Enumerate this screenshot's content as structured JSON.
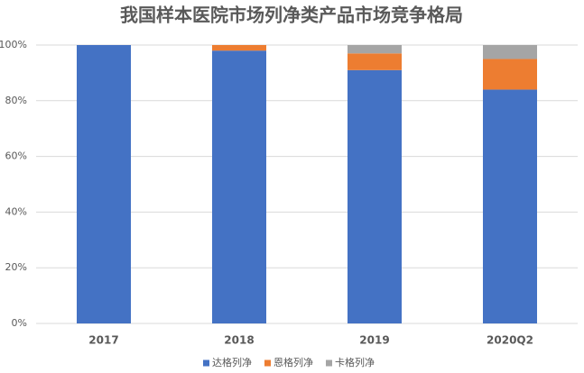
{
  "chart_data": {
    "type": "stacked_bar",
    "title": "我国样本医院市场列净类产品市场竞争格局",
    "categories": [
      "2017",
      "2018",
      "2019",
      "2020Q2"
    ],
    "series": [
      {
        "name": "达格列净",
        "color": "#4472c4",
        "values": [
          100,
          98,
          91,
          84
        ]
      },
      {
        "name": "恩格列净",
        "color": "#ed7d31",
        "values": [
          0,
          2,
          6,
          11
        ]
      },
      {
        "name": "卡格列净",
        "color": "#a5a5a5",
        "values": [
          0,
          0,
          3,
          5
        ]
      }
    ],
    "ylim": [
      0,
      100
    ],
    "yticks": [
      {
        "value": 0,
        "label": "0%"
      },
      {
        "value": 20,
        "label": "20%"
      },
      {
        "value": 40,
        "label": "40%"
      },
      {
        "value": 60,
        "label": "60%"
      },
      {
        "value": 80,
        "label": "80%"
      },
      {
        "value": 100,
        "label": "100%"
      }
    ],
    "grid": true,
    "legend": "bottom"
  }
}
